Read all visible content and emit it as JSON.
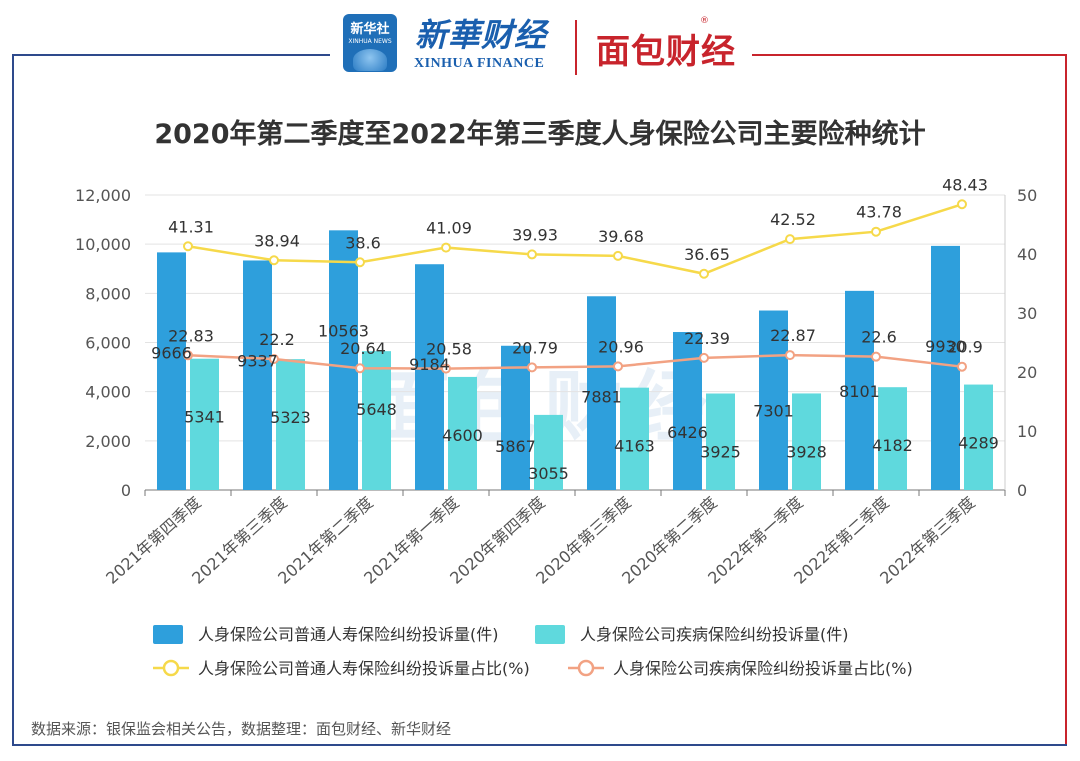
{
  "header": {
    "xinhua_logo_cn": "新华社",
    "xinhua_logo_en": "XINHUA NEWS",
    "xinhua_finance_cn": "新華财经",
    "xinhua_finance_en": "XINHUA FINANCE",
    "mianbao_logo": "面包财经",
    "registered_mark": "®"
  },
  "watermark": "面包财经",
  "source_note": "数据来源：银保监会相关公告，数据整理：面包财经、新华财经",
  "colors": {
    "bar_life": "#2e9fdc",
    "bar_disease": "#5fd9dd",
    "line_life": "#f6d94a",
    "line_disease": "#f2a283",
    "frame_blue": "#2e4a8c",
    "frame_red": "#c8242c"
  },
  "chart_data": {
    "type": "bar",
    "title": "2020年第二季度至2022年第三季度人身保险公司主要险种统计",
    "categories": [
      "2021年第四季度",
      "2021年第三季度",
      "2021年第二季度",
      "2021年第一季度",
      "2020年第四季度",
      "2020年第三季度",
      "2020年第二季度",
      "2022年第一季度",
      "2022年第二季度",
      "2022年第三季度"
    ],
    "y_left": {
      "ticks": [
        "0",
        "2,000",
        "4,000",
        "6,000",
        "8,000",
        "10,000",
        "12,000"
      ],
      "ylim": [
        0,
        12000
      ]
    },
    "y_right": {
      "ticks": [
        "0",
        "10",
        "20",
        "30",
        "40",
        "50"
      ],
      "ylim": [
        0,
        50
      ]
    },
    "series": [
      {
        "name": "人身保险公司普通人寿保险纠纷投诉量(件)",
        "kind": "bar",
        "axis": "left",
        "values": [
          9666,
          9337,
          10563,
          9184,
          5867,
          7881,
          6426,
          7301,
          8101,
          9930
        ],
        "labels": [
          "9666",
          "9337",
          "10563",
          "9184",
          "5867",
          "7881",
          "6426",
          "7301",
          "8101",
          "9930"
        ]
      },
      {
        "name": "人身保险公司疾病保险纠纷投诉量(件)",
        "kind": "bar",
        "axis": "left",
        "values": [
          5341,
          5323,
          5648,
          4600,
          3055,
          4163,
          3925,
          3928,
          4182,
          4289
        ],
        "labels": [
          "5341",
          "5323",
          "5648",
          "4600",
          "3055",
          "4163",
          "3925",
          "3928",
          "4182",
          "4289"
        ]
      },
      {
        "name": "人身保险公司普通人寿保险纠纷投诉量占比(%)",
        "kind": "line",
        "axis": "right",
        "values": [
          41.31,
          38.94,
          38.6,
          41.09,
          39.93,
          39.68,
          36.65,
          42.52,
          43.78,
          48.43
        ],
        "labels": [
          "41.31",
          "38.94",
          "38.6",
          "41.09",
          "39.93",
          "39.68",
          "36.65",
          "42.52",
          "43.78",
          "48.43"
        ]
      },
      {
        "name": "人身保险公司疾病保险纠纷投诉量占比(%)",
        "kind": "line",
        "axis": "right",
        "values": [
          22.83,
          22.2,
          20.64,
          20.58,
          20.79,
          20.96,
          22.39,
          22.87,
          22.6,
          20.9
        ],
        "labels": [
          "22.83",
          "22.2",
          "20.64",
          "20.58",
          "20.79",
          "20.96",
          "22.39",
          "22.87",
          "22.6",
          "20.9"
        ]
      }
    ],
    "legend_position": "bottom"
  }
}
